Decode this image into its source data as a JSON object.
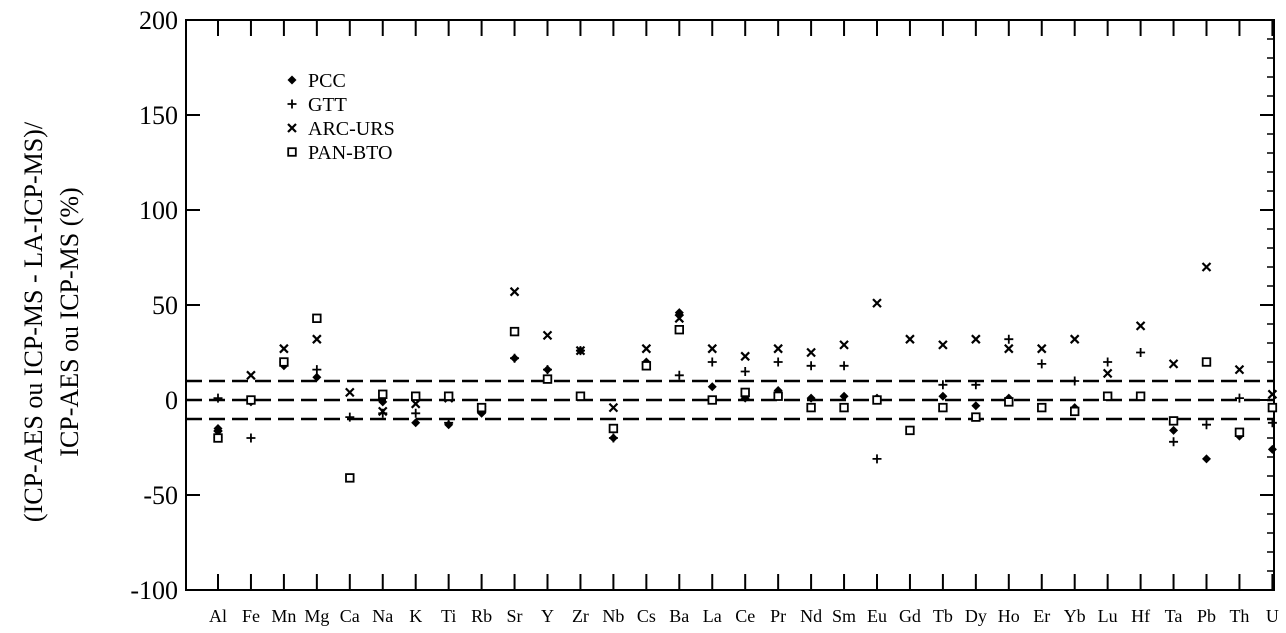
{
  "chart_data": {
    "type": "scatter",
    "ylabel_line1": "(ICP-AES ou ICP-MS - LA-ICP-MS)/",
    "ylabel_line2": "ICP-AES ou ICP-MS (%)",
    "ylim": [
      -100,
      200
    ],
    "yticks": [
      -100,
      -50,
      0,
      50,
      100,
      150,
      200
    ],
    "reference_lines": [
      10,
      0,
      -10
    ],
    "legend_position": "top-left",
    "categories": [
      "Al",
      "Fe",
      "Mn",
      "Mg",
      "Ca",
      "Na",
      "K",
      "Ti",
      "Rb",
      "Sr",
      "Y",
      "Zr",
      "Nb",
      "Cs",
      "Ba",
      "La",
      "Ce",
      "Pr",
      "Nd",
      "Sm",
      "Eu",
      "Gd",
      "Tb",
      "Dy",
      "Ho",
      "Er",
      "Yb",
      "Lu",
      "Hf",
      "Ta",
      "Pb",
      "Th",
      "U"
    ],
    "series": [
      {
        "name": "PCC",
        "marker": "diamond",
        "values": [
          -15,
          -1,
          18,
          12,
          null,
          -1,
          -12,
          -13,
          -7,
          22,
          16,
          26,
          -20,
          20,
          46,
          7,
          1,
          5,
          1,
          2,
          1,
          -16,
          2,
          -3,
          1,
          -4,
          -4,
          2,
          2,
          -16,
          -31,
          -19,
          -26
        ]
      },
      {
        "name": "GTT",
        "marker": "plus",
        "values": [
          1,
          -20,
          20,
          16,
          -9,
          -7,
          -7,
          -12,
          -5,
          22,
          16,
          26,
          -20,
          19,
          13,
          20,
          15,
          20,
          18,
          18,
          -31,
          -16,
          8,
          8,
          32,
          19,
          10,
          20,
          25,
          -22,
          -13,
          1,
          -12
        ]
      },
      {
        "name": "ARC-URS",
        "marker": "cross",
        "values": [
          -18,
          13,
          27,
          32,
          4,
          -6,
          -2,
          1,
          -5,
          57,
          34,
          26,
          -4,
          27,
          43,
          27,
          23,
          27,
          25,
          29,
          51,
          32,
          29,
          32,
          27,
          27,
          32,
          14,
          39,
          19,
          70,
          16,
          3
        ]
      },
      {
        "name": "PAN-BTO",
        "marker": "square",
        "values": [
          -20,
          0,
          20,
          43,
          -41,
          3,
          2,
          2,
          -4,
          36,
          11,
          2,
          -15,
          18,
          37,
          0,
          4,
          2,
          -4,
          -4,
          0,
          -16,
          -4,
          -9,
          -1,
          -4,
          -6,
          2,
          2,
          -11,
          20,
          -17,
          -4
        ]
      }
    ]
  }
}
